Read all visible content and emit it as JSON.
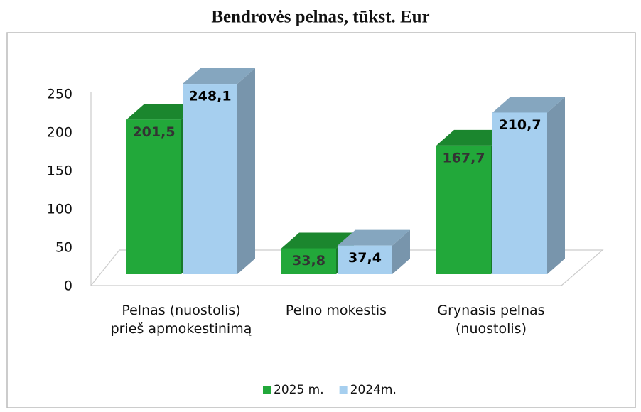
{
  "chart_data": {
    "type": "bar3d",
    "title": "Bendrovės pelnas, tūkst. Eur",
    "categories": [
      "Pelnas (nuostolis) prieš apmokestinimą",
      "Pelno mokestis",
      "Grynasis pelnas (nuostolis)"
    ],
    "series": [
      {
        "name": "2025 m.",
        "color": "#22a83a",
        "values": [
          201.5,
          33.8,
          167.7
        ],
        "value_labels": [
          "201,5",
          "33,8",
          "167,7"
        ]
      },
      {
        "name": "2024m.",
        "color": "#a6cfef",
        "values": [
          248.1,
          37.4,
          210.7
        ],
        "value_labels": [
          "248,1",
          "37,4",
          "210,7"
        ]
      }
    ],
    "ylim": [
      0,
      250
    ],
    "yticks": [
      0,
      50,
      100,
      150,
      200,
      250
    ],
    "grid": false,
    "legend": "bottom"
  }
}
